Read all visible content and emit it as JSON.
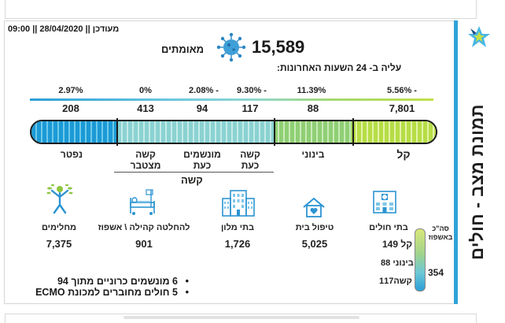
{
  "header": {
    "updated": "מעודכן || 28/04/2020 || 09:00",
    "confirmed_total": "15,589",
    "confirmed_label": "מאומתים",
    "rise_label": "עליה ב- 24 השעות האחרונות:",
    "sidebar_title": "תמונת מצב - חולים"
  },
  "categories": [
    {
      "pct": "5.56% -",
      "count": "7,801",
      "label": "קל"
    },
    {
      "pct": "11.39%",
      "count": "88",
      "label": "בינוני"
    },
    {
      "pct": "9.30% -",
      "count": "117",
      "label_top": "קשה",
      "label_bottom": "כעת"
    },
    {
      "pct": "2.08% -",
      "count": "94",
      "label_top": "מונשמים",
      "label_bottom": "כעת"
    },
    {
      "pct": "0%",
      "count": "413",
      "label_top": "קשה",
      "label_bottom": "מצטבר"
    },
    {
      "pct": "2.97%",
      "count": "208",
      "label": "נפטר"
    }
  ],
  "severe_group_label": "קשה",
  "stats": [
    {
      "icon": "hospital-icon",
      "label": "בתי חולים",
      "value": ""
    },
    {
      "icon": "home-care-icon",
      "label": "טיפול בית",
      "value": "5,025"
    },
    {
      "icon": "hotel-icon",
      "label": "בתי מלון",
      "value": "1,726"
    },
    {
      "icon": "hospital-bed-icon",
      "label": "להחלטה קהילה \\ אשפוז",
      "value": "901"
    },
    {
      "icon": "recovered-person-icon",
      "label": "מחלימים",
      "value": "7,375"
    }
  ],
  "hospital_breakdown": {
    "total_label": "סה\"כ באשפוז",
    "total": "354",
    "rows": [
      {
        "label": "קל",
        "value": "149"
      },
      {
        "label": "בינוני",
        "value": "88"
      },
      {
        "label": "קשה",
        "value": "117"
      }
    ]
  },
  "bullets": [
    "6 מונשמים כרוניים מתוך 94",
    "5 חולים מחוברים למכונת ECMO"
  ],
  "colors": {
    "accent_blue": "#2fa4d7",
    "accent_green": "#b6dd46",
    "teal": "#8bd2d2"
  }
}
